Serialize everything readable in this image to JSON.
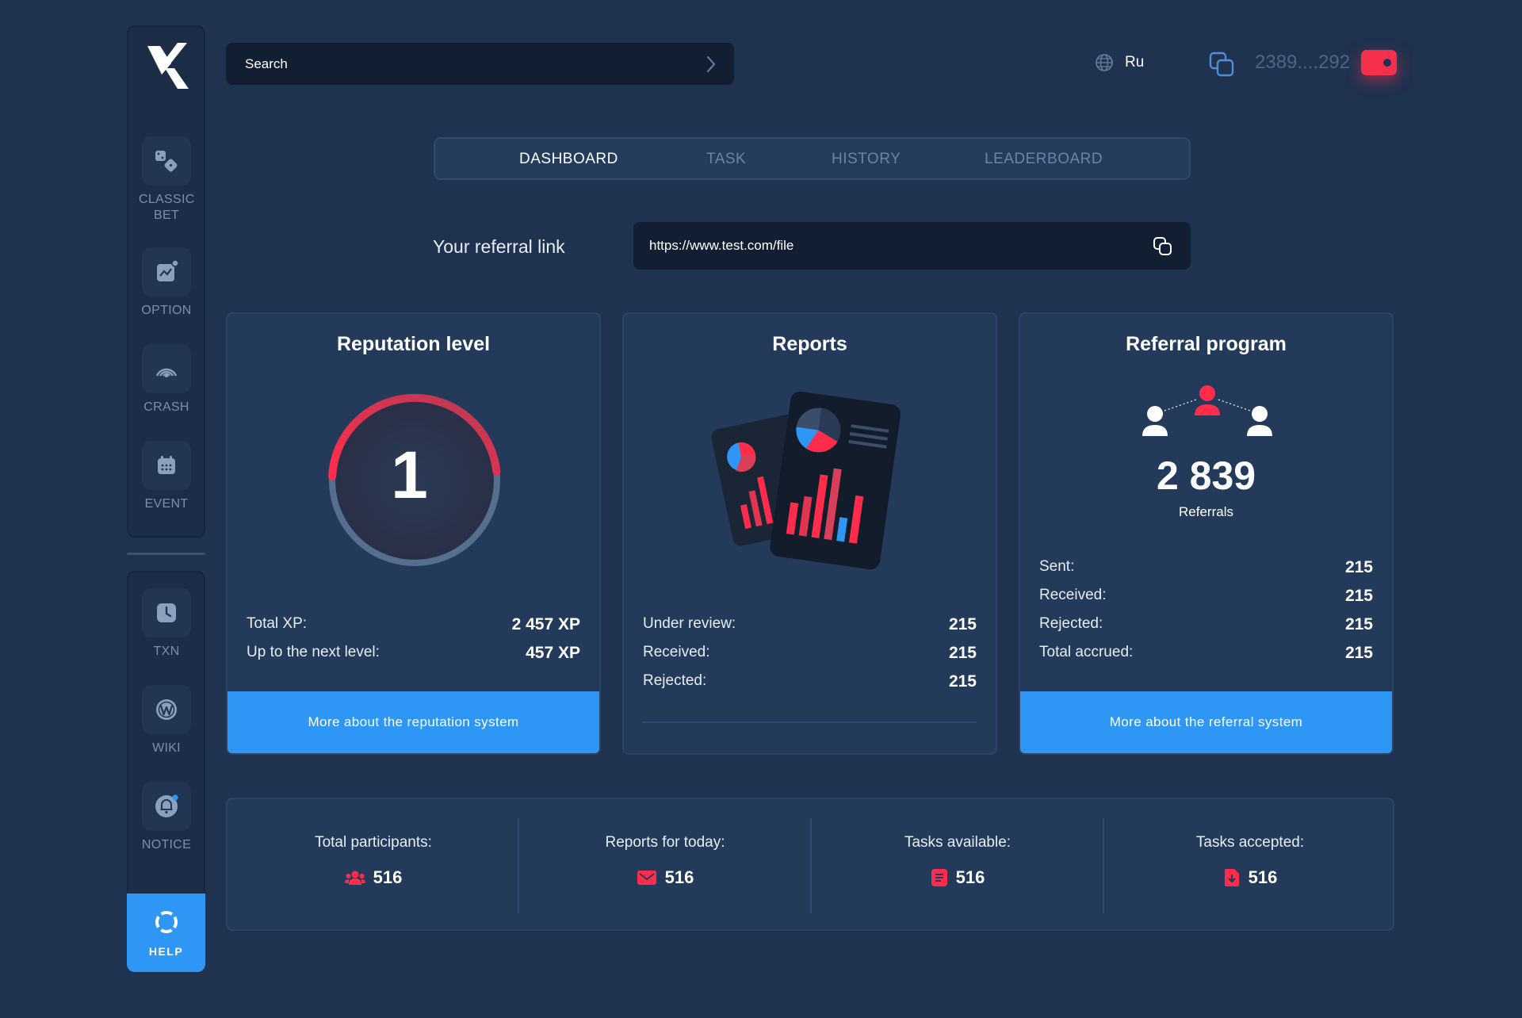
{
  "sidebar": {
    "items": [
      {
        "label": "CLASSIC BET",
        "icon": "dice-icon"
      },
      {
        "label": "OPTION",
        "icon": "chart-icon"
      },
      {
        "label": "CRASH",
        "icon": "signal-icon"
      },
      {
        "label": "EVENT",
        "icon": "calendar-icon"
      }
    ],
    "bottom_items": [
      {
        "label": "TXN",
        "icon": "clock-icon"
      },
      {
        "label": "WIKI",
        "icon": "wiki-icon"
      },
      {
        "label": "NOTICE",
        "icon": "bell-icon"
      }
    ],
    "help_label": "HELP"
  },
  "header": {
    "search_placeholder": "Search",
    "language": "Ru",
    "wallet_address": "2389....292"
  },
  "tabs": [
    {
      "label": "DASHBOARD",
      "active": true
    },
    {
      "label": "TASK",
      "active": false
    },
    {
      "label": "HISTORY",
      "active": false
    },
    {
      "label": "LEADERBOARD",
      "active": false
    }
  ],
  "referral": {
    "label": "Your referral link",
    "link": "https://www.test.com/file"
  },
  "cards": {
    "reputation": {
      "title": "Reputation level",
      "level": "1",
      "progress": 0.5,
      "rows": [
        {
          "key": "Total XP:",
          "value": "2 457 XP"
        },
        {
          "key": "Up to the next level:",
          "value": "457 XP"
        }
      ],
      "button": "More about the reputation system"
    },
    "reports": {
      "title": "Reports",
      "rows": [
        {
          "key": "Under review:",
          "value": "215"
        },
        {
          "key": "Received:",
          "value": "215"
        },
        {
          "key": "Rejected:",
          "value": "215"
        }
      ]
    },
    "referral_program": {
      "title": "Referral program",
      "count": "2 839",
      "count_label": "Referrals",
      "rows": [
        {
          "key": "Sent:",
          "value": "215"
        },
        {
          "key": "Received:",
          "value": "215"
        },
        {
          "key": "Rejected:",
          "value": "215"
        },
        {
          "key": "Total accrued:",
          "value": "215"
        }
      ],
      "button": "More about the referral system"
    }
  },
  "stats": [
    {
      "label": "Total participants:",
      "value": "516",
      "icon": "users-icon"
    },
    {
      "label": "Reports for today:",
      "value": "516",
      "icon": "mail-icon"
    },
    {
      "label": "Tasks available:",
      "value": "516",
      "icon": "list-icon"
    },
    {
      "label": "Tasks accepted:",
      "value": "516",
      "icon": "file-download-icon"
    }
  ],
  "colors": {
    "background": "#1f3250",
    "accent_blue": "#2e96f5",
    "accent_red": "#f5304d"
  }
}
